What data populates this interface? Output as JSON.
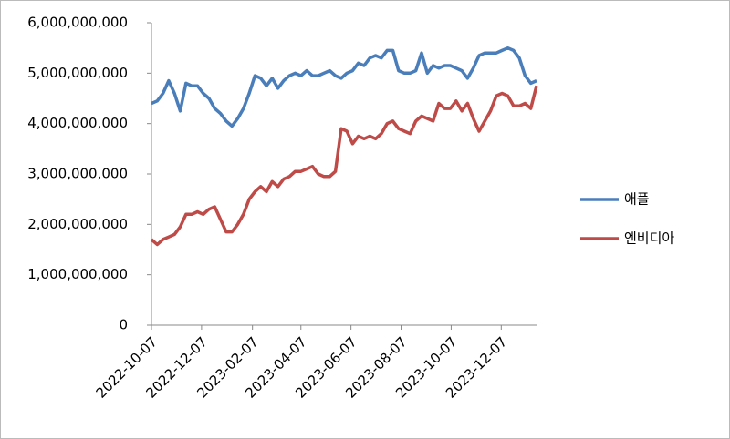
{
  "chart_data": {
    "type": "line",
    "x": [
      "2022-10-07",
      "2022-10-14",
      "2022-10-21",
      "2022-10-28",
      "2022-11-04",
      "2022-11-11",
      "2022-11-18",
      "2022-11-25",
      "2022-12-02",
      "2022-12-09",
      "2022-12-16",
      "2022-12-23",
      "2022-12-30",
      "2023-01-06",
      "2023-01-13",
      "2023-01-20",
      "2023-01-27",
      "2023-02-03",
      "2023-02-10",
      "2023-02-17",
      "2023-02-24",
      "2023-03-03",
      "2023-03-10",
      "2023-03-17",
      "2023-03-24",
      "2023-03-31",
      "2023-04-07",
      "2023-04-14",
      "2023-04-21",
      "2023-04-28",
      "2023-05-05",
      "2023-05-12",
      "2023-05-19",
      "2023-05-26",
      "2023-06-02",
      "2023-06-09",
      "2023-06-16",
      "2023-06-23",
      "2023-06-30",
      "2023-07-07",
      "2023-07-14",
      "2023-07-21",
      "2023-07-28",
      "2023-08-04",
      "2023-08-11",
      "2023-08-18",
      "2023-08-25",
      "2023-09-01",
      "2023-09-08",
      "2023-09-15",
      "2023-09-22",
      "2023-09-29",
      "2023-10-06",
      "2023-10-13",
      "2023-10-20",
      "2023-10-27",
      "2023-11-03",
      "2023-11-10",
      "2023-11-17",
      "2023-11-24",
      "2023-12-01",
      "2023-12-08",
      "2023-12-15",
      "2023-12-22",
      "2023-12-29",
      "2024-01-05",
      "2024-01-12",
      "2024-01-19"
    ],
    "series": [
      {
        "name": "애플",
        "color": "#4a7ebb",
        "values": [
          4400000000,
          4450000000,
          4600000000,
          4850000000,
          4600000000,
          4250000000,
          4800000000,
          4750000000,
          4750000000,
          4600000000,
          4500000000,
          4300000000,
          4200000000,
          4050000000,
          3950000000,
          4100000000,
          4300000000,
          4600000000,
          4950000000,
          4900000000,
          4750000000,
          4900000000,
          4700000000,
          4850000000,
          4950000000,
          5000000000,
          4950000000,
          5050000000,
          4950000000,
          4950000000,
          5000000000,
          5050000000,
          4950000000,
          4900000000,
          5000000000,
          5050000000,
          5200000000,
          5150000000,
          5300000000,
          5350000000,
          5300000000,
          5450000000,
          5450000000,
          5050000000,
          5000000000,
          5000000000,
          5050000000,
          5400000000,
          5000000000,
          5150000000,
          5100000000,
          5150000000,
          5150000000,
          5100000000,
          5050000000,
          4900000000,
          5100000000,
          5350000000,
          5400000000,
          5400000000,
          5400000000,
          5450000000,
          5500000000,
          5450000000,
          5300000000,
          4950000000,
          4800000000,
          4850000000
        ]
      },
      {
        "name": "엔비디아",
        "color": "#be4b48",
        "values": [
          1700000000,
          1600000000,
          1700000000,
          1750000000,
          1800000000,
          1950000000,
          2200000000,
          2200000000,
          2250000000,
          2200000000,
          2300000000,
          2350000000,
          2100000000,
          1850000000,
          1850000000,
          2000000000,
          2200000000,
          2500000000,
          2650000000,
          2750000000,
          2650000000,
          2850000000,
          2750000000,
          2900000000,
          2950000000,
          3050000000,
          3050000000,
          3100000000,
          3150000000,
          3000000000,
          2950000000,
          2950000000,
          3050000000,
          3900000000,
          3850000000,
          3600000000,
          3750000000,
          3700000000,
          3750000000,
          3700000000,
          3800000000,
          4000000000,
          4050000000,
          3900000000,
          3850000000,
          3800000000,
          4050000000,
          4150000000,
          4100000000,
          4050000000,
          4400000000,
          4300000000,
          4300000000,
          4450000000,
          4250000000,
          4400000000,
          4100000000,
          3850000000,
          4050000000,
          4250000000,
          4550000000,
          4600000000,
          4550000000,
          4350000000,
          4350000000,
          4400000000,
          4300000000,
          4750000000
        ]
      }
    ],
    "xlim": [
      "2022-10-07",
      "2024-01-19"
    ],
    "xticks": [
      "2022-10-07",
      "2022-12-07",
      "2023-02-07",
      "2023-04-07",
      "2023-06-07",
      "2023-08-07",
      "2023-10-07",
      "2023-12-07"
    ],
    "ylim": [
      0,
      6000000000
    ],
    "yticks": [
      0,
      {
        "value": 1000000000,
        "label": "1,000,000,000"
      },
      {
        "value": 2000000000,
        "label": "2,000,000,000"
      },
      {
        "value": 3000000000,
        "label": "3,000,000,000"
      },
      {
        "value": 4000000000,
        "label": "4,000,000,000"
      },
      {
        "value": 5000000000,
        "label": "5,000,000,000"
      },
      {
        "value": 6000000000,
        "label": "6,000,000,000"
      }
    ],
    "grid": false,
    "legend": "right"
  }
}
